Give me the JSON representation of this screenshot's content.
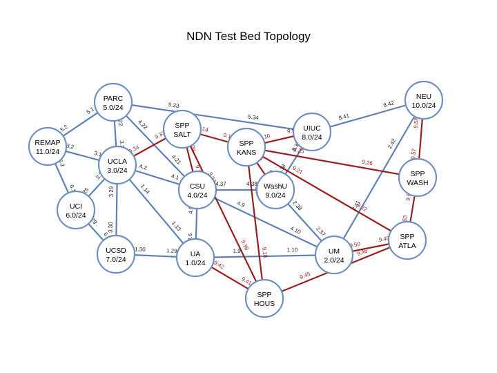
{
  "title": "NDN Test Bed Topology",
  "colors": {
    "blue_link": "#5d81b6",
    "red_link": "#9a1c1c",
    "node_stroke": "#6f8fc0",
    "black_label": "#222222",
    "red_label": "#9a1c1c"
  },
  "nodes": [
    {
      "id": "PARC",
      "lines": [
        "PARC",
        "5.0/24"
      ]
    },
    {
      "id": "REMAP",
      "lines": [
        "REMAP",
        "11.0/24"
      ]
    },
    {
      "id": "UCLA",
      "lines": [
        "UCLA",
        "3.0/24"
      ]
    },
    {
      "id": "UCI",
      "lines": [
        "UCI",
        "6.0/24"
      ]
    },
    {
      "id": "UCSD",
      "lines": [
        "UCSD",
        "7.0/24"
      ]
    },
    {
      "id": "SALT",
      "lines": [
        "SPP",
        "SALT"
      ]
    },
    {
      "id": "CSU",
      "lines": [
        "CSU",
        "4.0/24"
      ]
    },
    {
      "id": "UA",
      "lines": [
        "UA",
        "1.0/24"
      ]
    },
    {
      "id": "KANS",
      "lines": [
        "SPP",
        "KANS"
      ]
    },
    {
      "id": "UIUC",
      "lines": [
        "UIUC",
        "8.0/24"
      ]
    },
    {
      "id": "WASHU",
      "lines": [
        "WashU",
        "9.0/24"
      ]
    },
    {
      "id": "NEU",
      "lines": [
        "NEU",
        "10.0/24"
      ]
    },
    {
      "id": "WASH",
      "lines": [
        "SPP",
        "WASH"
      ]
    },
    {
      "id": "ATLA",
      "lines": [
        "SPP",
        "ATLA"
      ]
    },
    {
      "id": "UM",
      "lines": [
        "UM",
        "2.0/24"
      ]
    },
    {
      "id": "HOUS",
      "lines": [
        "SPP",
        "HOUS"
      ]
    }
  ],
  "edges": [
    {
      "from": "REMAP",
      "to": "PARC",
      "kind": "blue",
      "labels": [
        "5.2",
        "5.1"
      ]
    },
    {
      "from": "REMAP",
      "to": "UCLA",
      "kind": "blue",
      "labels": [
        "3.2",
        "3.1"
      ]
    },
    {
      "from": "REMAP",
      "to": "UCI",
      "kind": "blue",
      "labels": [
        "6.2",
        "6.1"
      ]
    },
    {
      "from": "PARC",
      "to": "UCLA",
      "kind": "blue",
      "labels": [
        "3.22",
        "3.21"
      ]
    },
    {
      "from": "PARC",
      "to": "CSU",
      "kind": "blue",
      "labels": [
        "4.22",
        "4.21"
      ]
    },
    {
      "from": "PARC",
      "to": "UIUC",
      "kind": "blue",
      "labels": [
        "5.33",
        "5.34"
      ]
    },
    {
      "from": "UCLA",
      "to": "UCI",
      "kind": "blue",
      "labels": [
        "3.25",
        "3.26"
      ]
    },
    {
      "from": "UCLA",
      "to": "UCSD",
      "kind": "blue",
      "labels": [
        "3.29",
        "3.30"
      ]
    },
    {
      "from": "UCLA",
      "to": "CSU",
      "kind": "blue",
      "labels": [
        "4.2",
        "4.1"
      ]
    },
    {
      "from": "UCLA",
      "to": "UA",
      "kind": "blue",
      "labels": [
        "1.14",
        "1.13"
      ]
    },
    {
      "from": "UCI",
      "to": "UCSD",
      "kind": "blue",
      "labels": [
        "6.29",
        "6.30"
      ]
    },
    {
      "from": "UCSD",
      "to": "UA",
      "kind": "blue",
      "labels": [
        "1.30",
        "1.29"
      ]
    },
    {
      "from": "CSU",
      "to": "WASHU",
      "kind": "blue",
      "labels": [
        "4.37",
        "4.38"
      ]
    },
    {
      "from": "CSU",
      "to": "UA",
      "kind": "blue",
      "labels": [
        "4.5",
        "4.6"
      ]
    },
    {
      "from": "CSU",
      "to": "UM",
      "kind": "blue",
      "labels": [
        "4.9",
        "4.10"
      ]
    },
    {
      "from": "UA",
      "to": "UM",
      "kind": "blue",
      "labels": [
        "1.9",
        "1.10"
      ]
    },
    {
      "from": "UIUC",
      "to": "NEU",
      "kind": "blue",
      "labels": [
        "8.41",
        "8.42"
      ]
    },
    {
      "from": "UIUC",
      "to": "WASHU",
      "kind": "blue",
      "labels": [
        "8.37",
        "8.38"
      ]
    },
    {
      "from": "WASHU",
      "to": "UM",
      "kind": "blue",
      "labels": [
        "2.38",
        "2.37"
      ]
    },
    {
      "from": "NEU",
      "to": "UM",
      "kind": "blue",
      "labels": [
        "2.42",
        "2.41"
      ]
    },
    {
      "from": "UCLA",
      "to": "SALT",
      "kind": "red",
      "labels": [
        "9.34",
        "9.33"
      ]
    },
    {
      "from": "SALT",
      "to": "KANS",
      "kind": "red",
      "labels": [
        "9.14",
        "9.13"
      ]
    },
    {
      "from": "SALT",
      "to": "CSU",
      "kind": "red",
      "labels": [
        "9.29",
        "9.30"
      ]
    },
    {
      "from": "SALT",
      "to": "HOUS",
      "kind": "red",
      "labels": [
        "9.37",
        "9.38"
      ]
    },
    {
      "from": "KANS",
      "to": "UIUC",
      "kind": "red",
      "labels": [
        "9.10",
        "9.9"
      ]
    },
    {
      "from": "KANS",
      "to": "WASHU",
      "kind": "red",
      "labels": [
        "9.6",
        "9.5"
      ]
    },
    {
      "from": "KANS",
      "to": "WASH",
      "kind": "red",
      "labels": [
        "9.25",
        "9.26"
      ]
    },
    {
      "from": "KANS",
      "to": "ATLA",
      "kind": "red",
      "labels": [
        "9.21",
        "9.22"
      ]
    },
    {
      "from": "KANS",
      "to": "HOUS",
      "kind": "red",
      "labels": [
        "9.17",
        "9.18"
      ]
    },
    {
      "from": "NEU",
      "to": "WASH",
      "kind": "red",
      "labels": [
        "9.58",
        "9.57"
      ]
    },
    {
      "from": "WASH",
      "to": "ATLA",
      "kind": "red",
      "labels": [
        "9.54",
        "9.53"
      ]
    },
    {
      "from": "ATLA",
      "to": "UM",
      "kind": "red",
      "labels": [
        "9.49",
        "9.50"
      ]
    },
    {
      "from": "ATLA",
      "to": "HOUS",
      "kind": "red",
      "labels": [
        "9.46",
        "9.45"
      ]
    },
    {
      "from": "UA",
      "to": "HOUS",
      "kind": "red",
      "labels": [
        "9.42",
        "9.41"
      ]
    }
  ]
}
